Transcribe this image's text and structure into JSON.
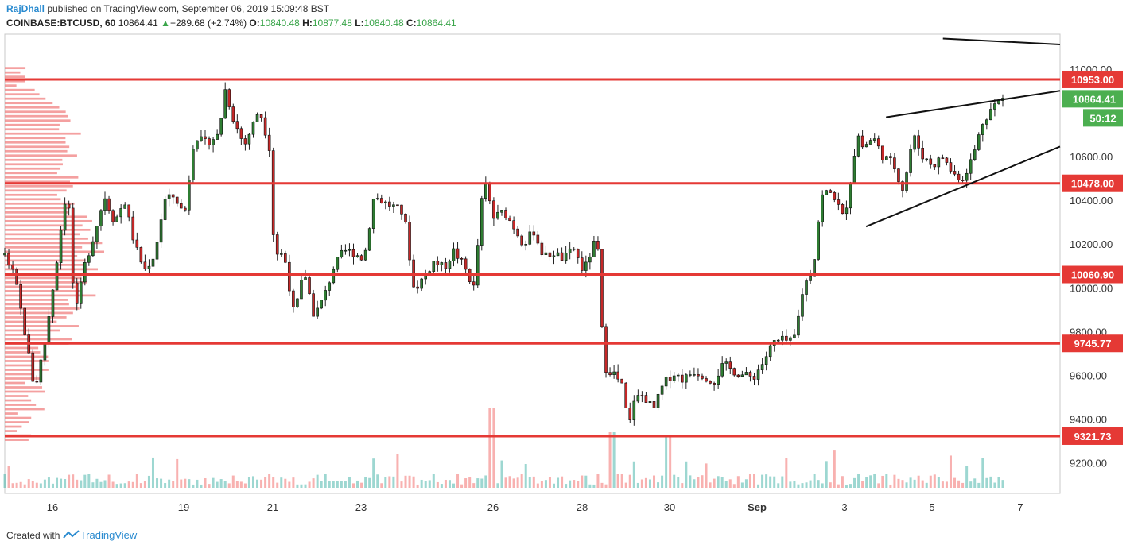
{
  "header": {
    "author": "RajDhall",
    "published_text": "published on TradingView.com, September 06, 2019 15:09:48 BST",
    "symbol": "COINBASE:BTCUSD, 60",
    "last": "10864.41",
    "change": "+289.68 (+2.74%)",
    "o_label": "O:",
    "o_value": "10840.48",
    "h_label": "H:",
    "h_value": "10877.48",
    "l_label": "L:",
    "l_value": "10840.48",
    "c_label": "C:",
    "c_value": "10864.41"
  },
  "footer": {
    "created_with": "Created with",
    "brand": "TradingView"
  },
  "colors": {
    "up": "#26a69a",
    "down": "#ef5350",
    "level_line": "#e53935",
    "price_tag": "#4caf50",
    "volume_profile": "#f08080"
  },
  "chart_data": {
    "type": "candlestick",
    "symbol": "COINBASE:BTCUSD",
    "interval": "60",
    "ylim": [
      9060,
      11160
    ],
    "y_ticks": [
      9200,
      9400,
      9600,
      9800,
      10000,
      10200,
      10400,
      10600,
      10800,
      11000
    ],
    "y_tick_labels": [
      "9200.00",
      "9400.00",
      "9600.00",
      "9800.00",
      "10000.00",
      "10200.00",
      "10400.00",
      "10600.00",
      "",
      "11000.00"
    ],
    "x_ticks": [
      "16",
      "19",
      "21",
      "23",
      "26",
      "28",
      "30",
      "Sep",
      "3",
      "5",
      "7"
    ],
    "horizontal_levels": [
      {
        "value": 10953.0,
        "label": "10953.00"
      },
      {
        "value": 10478.0,
        "label": "10478.00"
      },
      {
        "value": 10060.9,
        "label": "10060.90"
      },
      {
        "value": 9745.77,
        "label": "9745.77"
      },
      {
        "value": 9321.73,
        "label": "9321.73"
      }
    ],
    "current_price": {
      "value": 10864.41,
      "label": "10864.41",
      "countdown": "50:12"
    },
    "price_path": [
      [
        0,
        10150
      ],
      [
        0.01,
        10050
      ],
      [
        0.02,
        9800
      ],
      [
        0.03,
        9530
      ],
      [
        0.04,
        9750
      ],
      [
        0.05,
        10050
      ],
      [
        0.06,
        10400
      ],
      [
        0.065,
        10350
      ],
      [
        0.07,
        9850
      ],
      [
        0.08,
        10100
      ],
      [
        0.09,
        10250
      ],
      [
        0.1,
        10420
      ],
      [
        0.11,
        10300
      ],
      [
        0.12,
        10400
      ],
      [
        0.13,
        10200
      ],
      [
        0.14,
        10080
      ],
      [
        0.15,
        10150
      ],
      [
        0.16,
        10400
      ],
      [
        0.17,
        10420
      ],
      [
        0.18,
        10330
      ],
      [
        0.19,
        10700
      ],
      [
        0.2,
        10660
      ],
      [
        0.215,
        10700
      ],
      [
        0.22,
        10920
      ],
      [
        0.23,
        10760
      ],
      [
        0.24,
        10650
      ],
      [
        0.25,
        10760
      ],
      [
        0.255,
        10820
      ],
      [
        0.265,
        10650
      ],
      [
        0.27,
        10160
      ],
      [
        0.28,
        10150
      ],
      [
        0.29,
        9870
      ],
      [
        0.3,
        10080
      ],
      [
        0.31,
        9870
      ],
      [
        0.32,
        9960
      ],
      [
        0.33,
        10100
      ],
      [
        0.34,
        10170
      ],
      [
        0.35,
        10160
      ],
      [
        0.36,
        10130
      ],
      [
        0.37,
        10420
      ],
      [
        0.38,
        10390
      ],
      [
        0.39,
        10370
      ],
      [
        0.4,
        10340
      ],
      [
        0.41,
        9990
      ],
      [
        0.42,
        10050
      ],
      [
        0.43,
        10120
      ],
      [
        0.44,
        10090
      ],
      [
        0.45,
        10170
      ],
      [
        0.46,
        10100
      ],
      [
        0.47,
        10000
      ],
      [
        0.48,
        10500
      ],
      [
        0.49,
        10320
      ],
      [
        0.5,
        10350
      ],
      [
        0.51,
        10280
      ],
      [
        0.52,
        10200
      ],
      [
        0.53,
        10260
      ],
      [
        0.54,
        10140
      ],
      [
        0.55,
        10160
      ],
      [
        0.56,
        10130
      ],
      [
        0.57,
        10180
      ],
      [
        0.58,
        10070
      ],
      [
        0.59,
        10200
      ],
      [
        0.595,
        10160
      ],
      [
        0.6,
        9640
      ],
      [
        0.61,
        9610
      ],
      [
        0.62,
        9540
      ],
      [
        0.625,
        9340
      ],
      [
        0.63,
        9490
      ],
      [
        0.64,
        9510
      ],
      [
        0.65,
        9440
      ],
      [
        0.66,
        9560
      ],
      [
        0.67,
        9610
      ],
      [
        0.68,
        9580
      ],
      [
        0.69,
        9620
      ],
      [
        0.7,
        9600
      ],
      [
        0.71,
        9570
      ],
      [
        0.72,
        9650
      ],
      [
        0.73,
        9620
      ],
      [
        0.74,
        9600
      ],
      [
        0.75,
        9590
      ],
      [
        0.76,
        9660
      ],
      [
        0.77,
        9750
      ],
      [
        0.78,
        9760
      ],
      [
        0.79,
        9750
      ],
      [
        0.795,
        9860
      ],
      [
        0.8,
        10000
      ],
      [
        0.81,
        10090
      ],
      [
        0.815,
        10300
      ],
      [
        0.82,
        10440
      ],
      [
        0.83,
        10430
      ],
      [
        0.84,
        10320
      ],
      [
        0.845,
        10410
      ],
      [
        0.85,
        10580
      ],
      [
        0.855,
        10700
      ],
      [
        0.86,
        10640
      ],
      [
        0.87,
        10690
      ],
      [
        0.88,
        10600
      ],
      [
        0.89,
        10570
      ],
      [
        0.9,
        10450
      ],
      [
        0.905,
        10560
      ],
      [
        0.91,
        10700
      ],
      [
        0.92,
        10600
      ],
      [
        0.93,
        10560
      ],
      [
        0.94,
        10600
      ],
      [
        0.95,
        10520
      ],
      [
        0.96,
        10500
      ],
      [
        0.97,
        10600
      ],
      [
        0.98,
        10760
      ],
      [
        0.99,
        10830
      ],
      [
        1.0,
        10864
      ]
    ],
    "trendlines": [
      {
        "from": [
          0.883,
          10780
        ],
        "to": [
          1.07,
          10910
        ]
      },
      {
        "from": [
          0.863,
          10280
        ],
        "to": [
          1.07,
          10670
        ]
      },
      {
        "from": [
          0.94,
          11140
        ],
        "to": [
          1.07,
          11110
        ]
      }
    ]
  }
}
